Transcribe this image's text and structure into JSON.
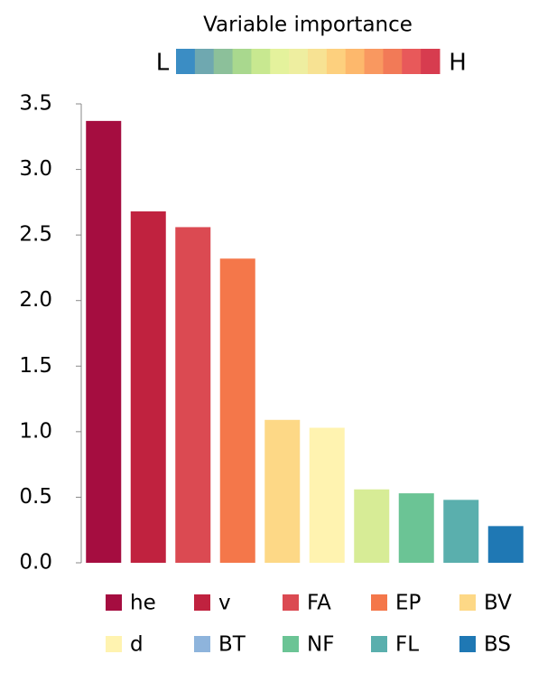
{
  "chart_data": {
    "type": "bar",
    "title": "Variable importance",
    "colorbar": {
      "low_label": "L",
      "high_label": "H",
      "colors": [
        "#3b8dc4",
        "#6fa8b0",
        "#8cc09a",
        "#a9d88e",
        "#c8e890",
        "#e4f29c",
        "#eeeea0",
        "#f7e293",
        "#fdd07e",
        "#fdb86c",
        "#f99860",
        "#f27a57",
        "#e8595a",
        "#d73c4f"
      ]
    },
    "categories": [
      "he",
      "v",
      "FA",
      "EP",
      "BV",
      "d",
      "BT",
      "NF",
      "FL",
      "BS"
    ],
    "values": [
      3.37,
      2.68,
      2.56,
      2.32,
      1.09,
      1.03,
      0.56,
      0.53,
      0.48,
      0.28
    ],
    "colors": [
      "#a50d40",
      "#c0223f",
      "#db4a52",
      "#f4774a",
      "#fdd886",
      "#fff3b0",
      "#d7ec96",
      "#6bc495",
      "#5aafad",
      "#1f78b4"
    ],
    "legend_colors": [
      "#a50d40",
      "#c0223f",
      "#db4a52",
      "#f4774a",
      "#fdd886",
      "#fff3b0",
      "#8eb4dc",
      "#6bc495",
      "#5aafad",
      "#1f78b4"
    ],
    "ylim": [
      0,
      3.5
    ],
    "yticks": [
      {
        "value": 0,
        "label": "0.0"
      },
      0.5,
      {
        "value": 1,
        "label": "1.0"
      },
      1.5,
      {
        "value": 2,
        "label": "2.0"
      },
      2.5,
      {
        "value": 3,
        "label": "3.0"
      },
      3.5
    ],
    "grid": false
  }
}
